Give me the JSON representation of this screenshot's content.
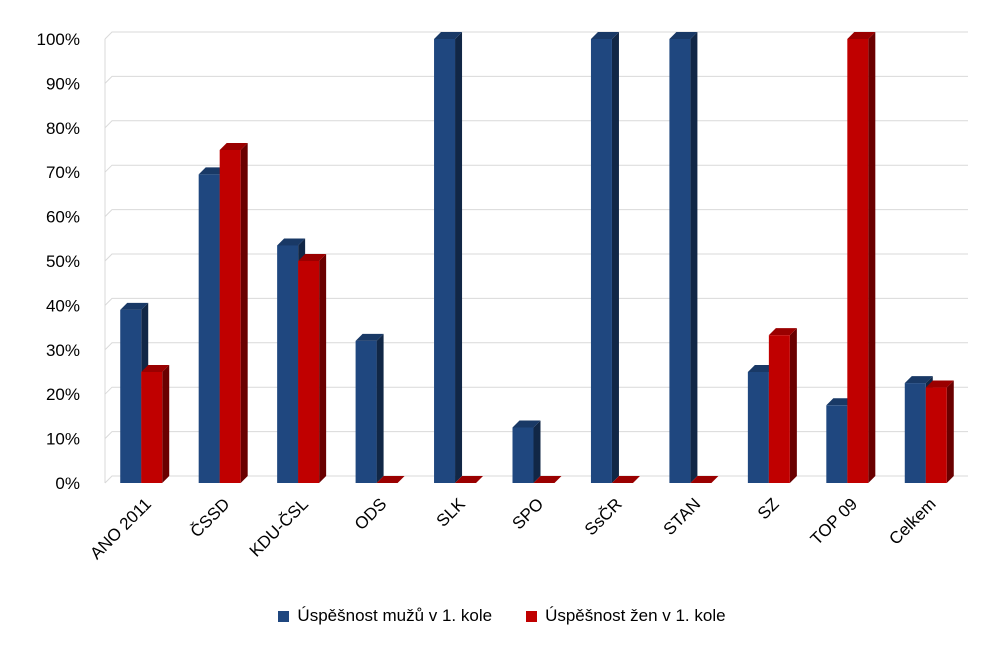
{
  "chart_data": {
    "type": "bar",
    "title": "",
    "xlabel": "",
    "ylabel": "",
    "ylim": [
      0,
      100
    ],
    "y_ticks": [
      "0%",
      "10%",
      "20%",
      "30%",
      "40%",
      "50%",
      "60%",
      "70%",
      "80%",
      "90%",
      "100%"
    ],
    "grid": true,
    "legend_position": "bottom",
    "categories": [
      "ANO 2011",
      "ČSSD",
      "KDU-ČSL",
      "ODS",
      "SLK",
      "SPO",
      "SsČR",
      "STAN",
      "SZ",
      "TOP 09",
      "Celkem"
    ],
    "series": [
      {
        "name": "Úspěšnost mužů v 1. kole",
        "color": "#1f477f",
        "values": [
          39,
          69.5,
          53.5,
          32,
          100,
          12.5,
          100,
          100,
          25,
          17.5,
          22.5
        ]
      },
      {
        "name": "Úspěšnost žen  v 1. kole",
        "color": "#c00000",
        "values": [
          25,
          75,
          50,
          0,
          0,
          0,
          0,
          0,
          33.3,
          100,
          21.5
        ]
      }
    ]
  }
}
